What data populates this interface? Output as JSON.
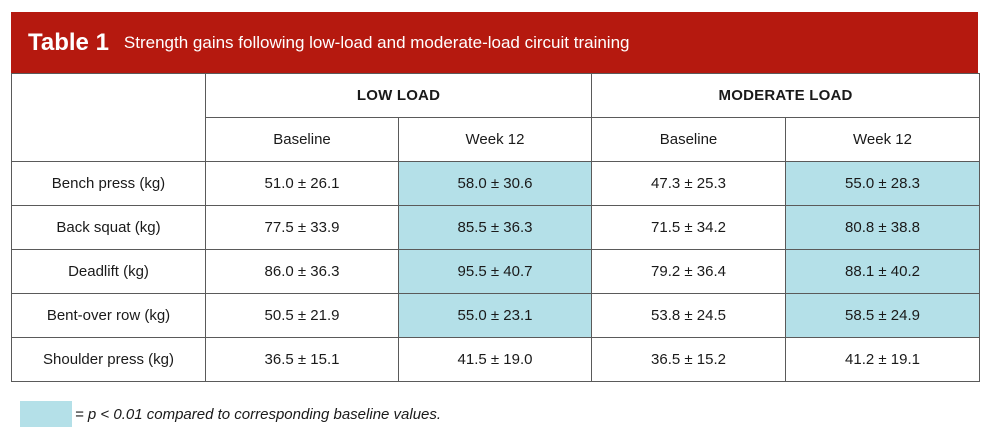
{
  "title": {
    "number": "Table 1",
    "caption": "Strength gains following low-load and moderate-load circuit training"
  },
  "header": {
    "groups": [
      "LOW LOAD",
      "MODERATE LOAD"
    ],
    "subcolumns": [
      "Baseline",
      "Week 12",
      "Baseline",
      "Week 12"
    ]
  },
  "rows": [
    {
      "label": "Bench press (kg)",
      "values": [
        "51.0 ± 26.1",
        "58.0 ± 30.6",
        "47.3 ± 25.3",
        "55.0 ± 28.3"
      ],
      "highlight": [
        false,
        true,
        false,
        true
      ]
    },
    {
      "label": "Back squat (kg)",
      "values": [
        "77.5 ± 33.9",
        "85.5 ± 36.3",
        "71.5 ± 34.2",
        "80.8 ± 38.8"
      ],
      "highlight": [
        false,
        true,
        false,
        true
      ]
    },
    {
      "label": "Deadlift (kg)",
      "values": [
        "86.0 ± 36.3",
        "95.5 ± 40.7",
        "79.2 ± 36.4",
        "88.1 ± 40.2"
      ],
      "highlight": [
        false,
        true,
        false,
        true
      ]
    },
    {
      "label": "Bent-over row (kg)",
      "values": [
        "50.5 ± 21.9",
        "55.0 ± 23.1",
        "53.8 ± 24.5",
        "58.5 ± 24.9"
      ],
      "highlight": [
        false,
        true,
        false,
        true
      ]
    },
    {
      "label": "Shoulder press (kg)",
      "values": [
        "36.5 ± 15.1",
        "41.5 ± 19.0",
        "36.5 ± 15.2",
        "41.2 ± 19.1"
      ],
      "highlight": [
        false,
        false,
        false,
        false
      ]
    }
  ],
  "legend": {
    "text": "= p < 0.01 compared to corresponding baseline values.",
    "swatch_color": "#b4e0e8"
  },
  "colors": {
    "title_bar": "#b5190f",
    "highlight": "#b4e0e8",
    "border": "#5a5a5a"
  }
}
